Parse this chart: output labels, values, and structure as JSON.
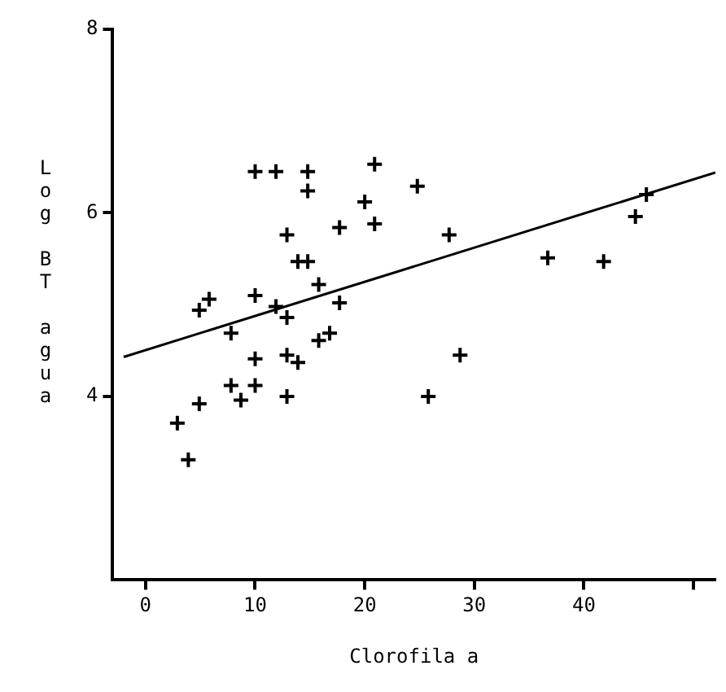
{
  "chart_data": {
    "type": "scatter",
    "xlabel": "Clorofila a",
    "ylabel": "Log BT agua",
    "xlim": [
      -3,
      52
    ],
    "ylim": [
      2,
      8
    ],
    "xticks": [
      0,
      10,
      20,
      30,
      40,
      {
        "value": 50,
        "label": null
      }
    ],
    "yticks": [
      4,
      6,
      8
    ],
    "grid": false,
    "legend": false,
    "marker": "cross",
    "series": [
      {
        "color": "#000000",
        "x": [
          10.0,
          11.9,
          14.8,
          14.8,
          20.9,
          24.8,
          20.0,
          20.9,
          17.7,
          12.9,
          13.9,
          14.8,
          15.8,
          10.0,
          5.8,
          4.9,
          11.9,
          12.9,
          17.7,
          7.8,
          16.8,
          15.8,
          10.0,
          12.9,
          13.9,
          7.8,
          10.0,
          8.7,
          12.9,
          4.9,
          2.9,
          3.9,
          25.8,
          28.7,
          27.7,
          36.7,
          41.8,
          44.7,
          45.7
        ],
        "values": [
          6.45,
          6.45,
          6.45,
          6.24,
          6.53,
          6.29,
          6.12,
          5.88,
          5.84,
          5.76,
          5.47,
          5.47,
          5.22,
          5.1,
          5.06,
          4.94,
          4.98,
          4.86,
          5.02,
          4.69,
          4.69,
          4.61,
          4.41,
          4.45,
          4.37,
          4.12,
          4.12,
          3.96,
          4.0,
          3.92,
          3.71,
          3.31,
          4.0,
          4.45,
          5.76,
          5.51,
          5.47,
          5.96,
          6.2
        ]
      },
      {
        "type": "line",
        "color": "#000000",
        "x": [
          -2,
          52
        ],
        "values": [
          4.43,
          6.44
        ],
        "marker": "none"
      }
    ]
  }
}
